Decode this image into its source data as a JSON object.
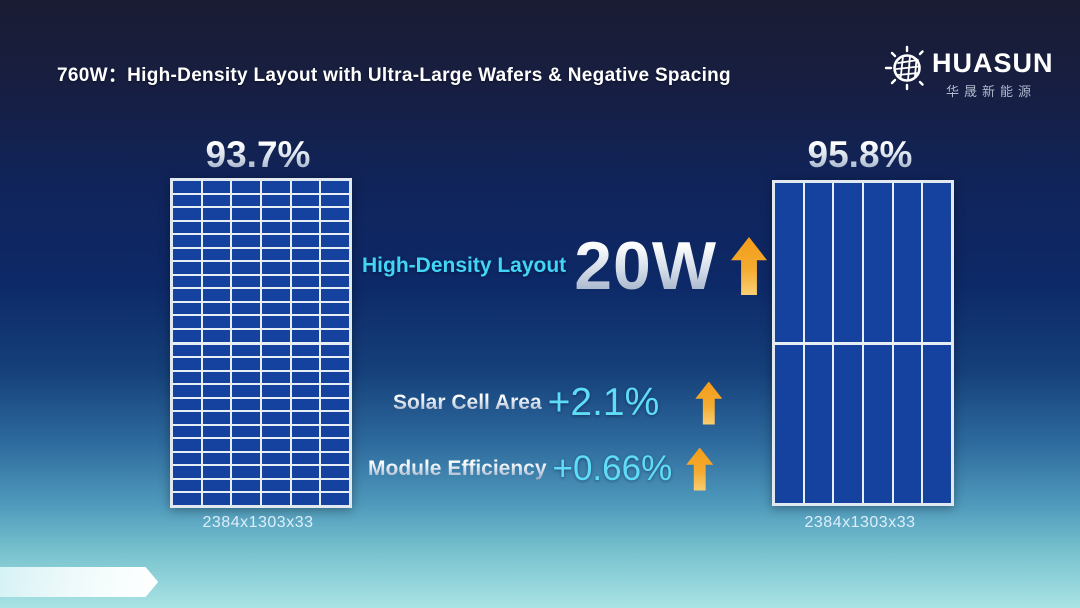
{
  "slide": {
    "title": "760W：High-Density Layout with Ultra-Large Wafers & Negative Spacing"
  },
  "logo": {
    "brand": "HUASUN",
    "brand_cn": "华晟新能源",
    "icon": "sun-wafer-icon"
  },
  "comparison": {
    "left_panel": {
      "efficiency": "93.7%",
      "dimensions": "2384x1303x33",
      "grid": {
        "columns": 6,
        "rows_per_half": 12,
        "halves": 2
      }
    },
    "right_panel": {
      "efficiency": "95.8%",
      "dimensions": "2384x1303x33",
      "grid": {
        "columns": 6,
        "rows_per_half": 1,
        "halves": 2
      }
    }
  },
  "metrics": {
    "power": {
      "label": "High-Density Layout",
      "value": "20W",
      "icon": "up-arrow-icon"
    },
    "area": {
      "label": "Solar Cell Area",
      "value": "+2.1%",
      "icon": "up-arrow-icon"
    },
    "efficiency": {
      "label": "Module Efficiency",
      "value": "+0.66%",
      "icon": "up-arrow-icon"
    }
  },
  "colors": {
    "accent_cyan": "#41d6f6",
    "accent_orange": "#f5a01e",
    "cell_blue": "#15429e",
    "background_top": "#1a1c33",
    "background_mid": "#0d2968",
    "background_bottom": "#a9e3e4"
  }
}
